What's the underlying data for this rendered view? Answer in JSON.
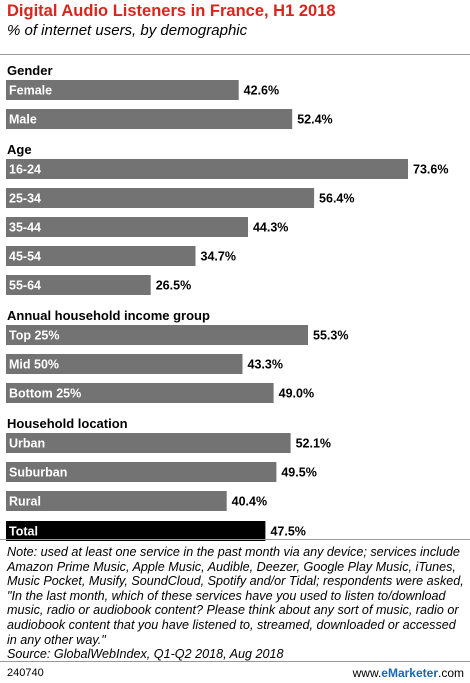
{
  "chart_data": {
    "type": "bar",
    "orientation": "horizontal",
    "title": "Digital Audio Listeners in France, H1 2018",
    "subtitle": "% of internet users, by demographic",
    "value_suffix": "%",
    "xlim": [
      0,
      73.6
    ],
    "grid": false,
    "groups": [
      {
        "name": "Gender",
        "categories": [
          "Female",
          "Male"
        ],
        "values": [
          42.6,
          52.4
        ]
      },
      {
        "name": "Age",
        "categories": [
          "16-24",
          "25-34",
          "35-44",
          "45-54",
          "55-64"
        ],
        "values": [
          73.6,
          56.4,
          44.3,
          34.7,
          26.5
        ]
      },
      {
        "name": "Annual household income group",
        "categories": [
          "Top 25%",
          "Mid 50%",
          "Bottom 25%"
        ],
        "values": [
          55.3,
          43.3,
          49.0
        ]
      },
      {
        "name": "Household location",
        "categories": [
          "Urban",
          "Suburban",
          "Rural"
        ],
        "values": [
          52.1,
          49.5,
          40.4
        ]
      },
      {
        "name": "",
        "categories": [
          "Total"
        ],
        "values": [
          47.5
        ],
        "highlight": true
      }
    ],
    "colors": {
      "bar": "#737373",
      "total_bar": "#000000",
      "bar_label": "#ffffff",
      "value_label": "#000000"
    }
  },
  "note": "Note: used at least one service in the past month via any device; services include Amazon Prime Music, Apple Music, Audible, Deezer, Google Play Music, iTunes, Music Pocket, Musify, SoundCloud, Spotify and/or Tidal; respondents were asked, \"In the last month, which of these services have you used to listen to/download music, radio or audiobook content? Please think about any sort of music, radio or audiobook content that you have listened to, streamed, downloaded or accessed in any other way.\"",
  "source": "Source: GlobalWebIndex, Q1-Q2 2018, Aug 2018",
  "footer": {
    "chart_id": "240740",
    "brand_prefix": "www.",
    "brand_name": "eMarketer",
    "brand_suffix": ".com"
  }
}
